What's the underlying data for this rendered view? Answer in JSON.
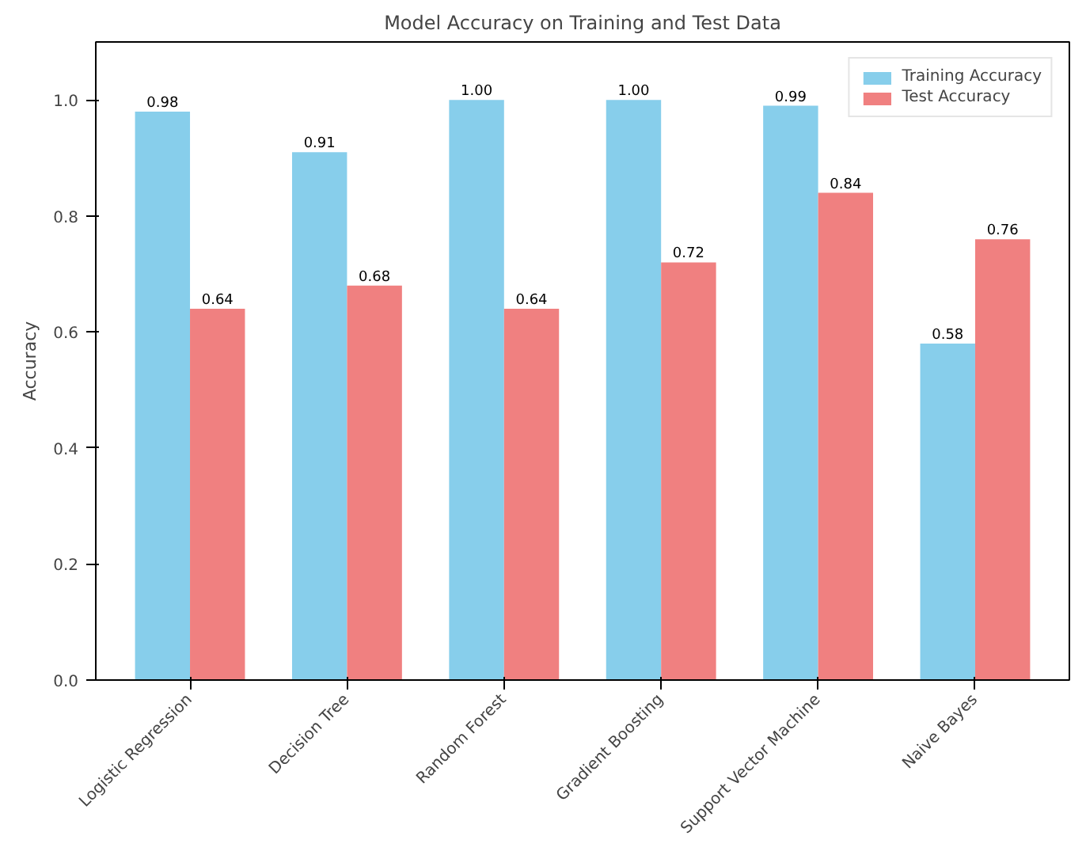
{
  "chart_data": {
    "type": "bar",
    "title": "Model Accuracy on Training and Test Data",
    "ylabel": "Accuracy",
    "categories": [
      "Logistic Regression",
      "Decision Tree",
      "Random Forest",
      "Gradient Boosting",
      "Support Vector Machine",
      "Naive Bayes"
    ],
    "series": [
      {
        "name": "Training Accuracy",
        "color": "#87ceeb",
        "values": [
          0.98,
          0.91,
          1.0,
          1.0,
          0.99,
          0.58
        ],
        "value_labels": [
          "0.98",
          "0.91",
          "1.00",
          "1.00",
          "0.99",
          "0.58"
        ]
      },
      {
        "name": "Test Accuracy",
        "color": "#f08080",
        "values": [
          0.64,
          0.68,
          0.64,
          0.72,
          0.84,
          0.76
        ],
        "value_labels": [
          "0.64",
          "0.68",
          "0.64",
          "0.72",
          "0.84",
          "0.76"
        ]
      }
    ],
    "ylim": [
      0,
      1.1
    ],
    "yticks": [
      {
        "value": 0,
        "label": "0.0"
      },
      {
        "value": 0.2,
        "label": "0.2"
      },
      {
        "value": 0.4,
        "label": "0.4"
      },
      {
        "value": 0.6,
        "label": "0.6"
      },
      {
        "value": 0.8,
        "label": "0.8"
      },
      {
        "value": 1.0,
        "label": "1.0"
      }
    ],
    "grid": false,
    "legend": "top right"
  }
}
